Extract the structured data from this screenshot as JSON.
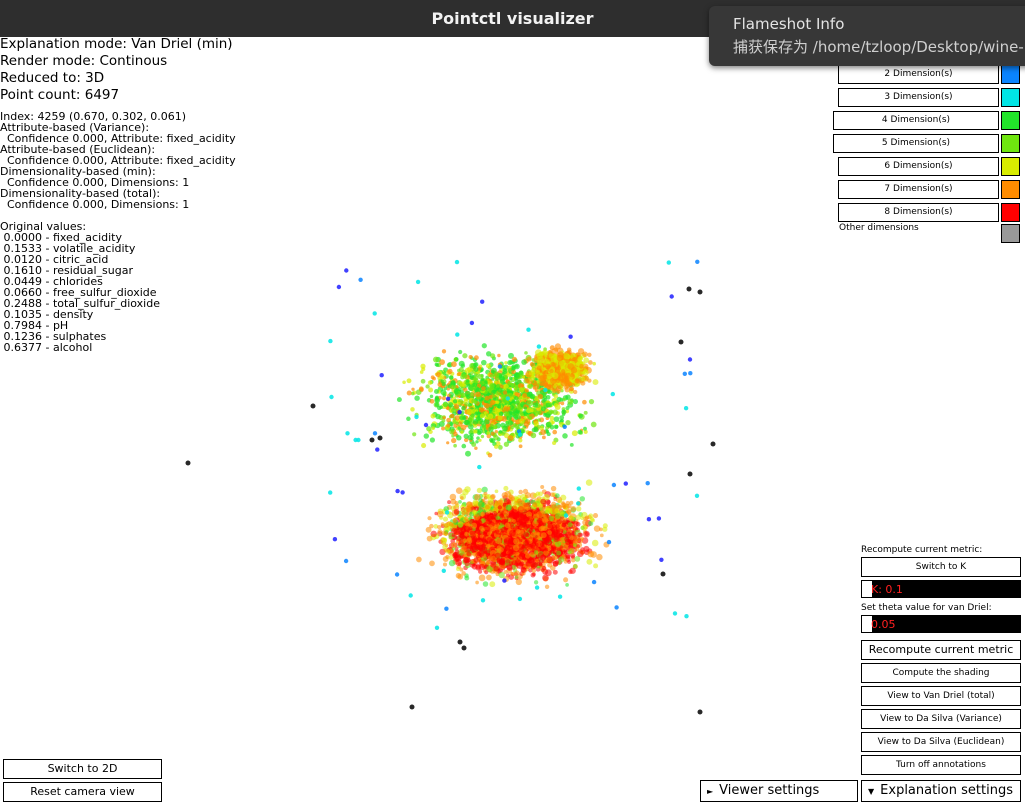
{
  "window": {
    "title": "Pointctl visualizer"
  },
  "notification": {
    "title": "Flameshot Info",
    "body": "捕获保存为 /home/tzloop/Desktop/wine-points"
  },
  "info": {
    "lines": [
      "Explanation mode: Van Driel (min)",
      "Render mode: Continous",
      "Reduced to: 3D",
      "Point count: 6497"
    ],
    "point_lines": [
      "Index: 4259 (0.670, 0.302, 0.061)",
      "Attribute-based (Variance):",
      "  Confidence 0.000, Attribute: fixed_acidity",
      "Attribute-based (Euclidean):",
      "  Confidence 0.000, Attribute: fixed_acidity",
      "Dimensionality-based (min):",
      "  Confidence 0.000, Dimensions: 1",
      "Dimensionality-based (total):",
      "  Confidence 0.000, Dimensions: 1"
    ],
    "original_header": "Original values:",
    "original_values": [
      " 0.0000 - fixed_acidity",
      " 0.1533 - volatile_acidity",
      " 0.0120 - citric_acid",
      " 0.1610 - residual_sugar",
      " 0.0449 - chlorides",
      " 0.0660 - free_sulfur_dioxide",
      " 0.2488 - total_sulfur_dioxide",
      " 0.1035 - density",
      " 0.7984 - pH",
      " 0.1236 - sulphates",
      " 0.6377 - alcohol"
    ]
  },
  "legend": {
    "items": [
      {
        "label": "2 Dimension(s)",
        "color": "#0a84ff"
      },
      {
        "label": "3 Dimension(s)",
        "color": "#00e5e5"
      },
      {
        "label": "4 Dimension(s)",
        "color": "#22e52a"
      },
      {
        "label": "5 Dimension(s)",
        "color": "#6fe60f"
      },
      {
        "label": "6 Dimension(s)",
        "color": "#d8ec00"
      },
      {
        "label": "7 Dimension(s)",
        "color": "#ff8c00"
      },
      {
        "label": "8 Dimension(s)",
        "color": "#ff0000"
      }
    ],
    "other": {
      "label": "Other dimensions",
      "color": "#999999"
    }
  },
  "controls": {
    "recompute_label": "Recompute current metric:",
    "switch_k": "Switch to K",
    "k_value": "K: 0.1",
    "theta_label": "Set theta value for van Driel:",
    "theta_value": "0.05",
    "recompute_button": "Recompute current metric",
    "compute_shading": "Compute the shading",
    "view_van_driel": "View to Van Driel (total)",
    "view_da_silva_var": "View to Da Silva (Variance)",
    "view_da_silva_euc": "View to Da Silva (Euclidean)",
    "turn_off_annotations": "Turn off annotations"
  },
  "bottom": {
    "switch_2d": "Switch to 2D",
    "reset_camera": "Reset camera view",
    "viewer_settings": "Viewer settings",
    "explanation_settings": "Explanation settings",
    "viewer_arrow": "►",
    "explanation_arrow": "▼"
  },
  "scatter_data": {
    "type": "scatter",
    "point_count": 6497,
    "colors": {
      "red": "#ff0000",
      "orange": "#ff8c00",
      "yellow": "#d8ec00",
      "lime": "#6fe60f",
      "green": "#22e52a",
      "cyan": "#00e5e5",
      "blue": "#0a84ff",
      "navy": "#2020ff",
      "gray": "#111111"
    }
  }
}
